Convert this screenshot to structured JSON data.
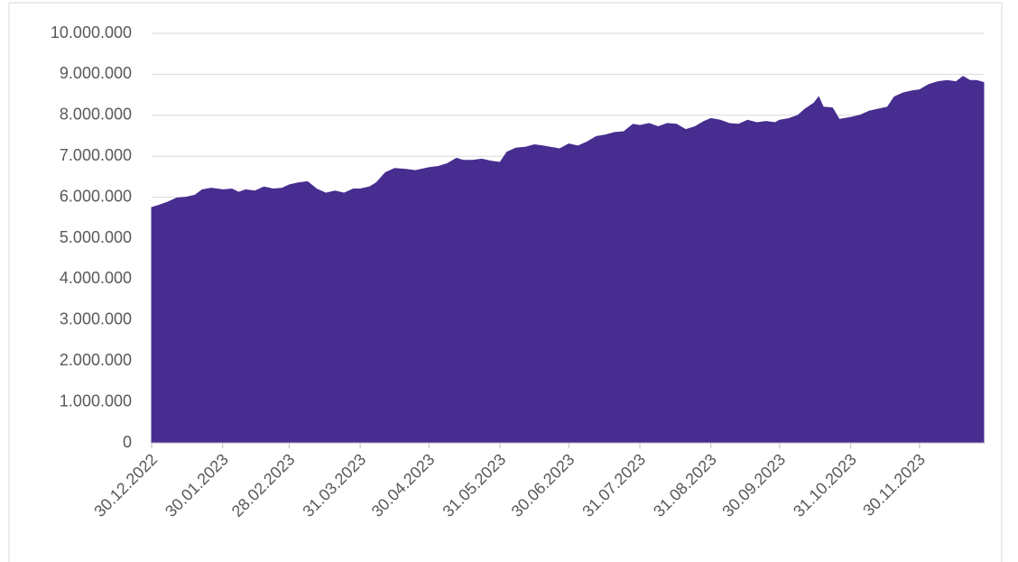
{
  "chart_data": {
    "type": "area",
    "color": "#472d8f",
    "grid": true,
    "x": [
      "2022-12-30",
      "2023-01-02",
      "2023-01-06",
      "2023-01-10",
      "2023-01-14",
      "2023-01-18",
      "2023-01-21",
      "2023-01-25",
      "2023-01-30",
      "2023-02-03",
      "2023-02-06",
      "2023-02-09",
      "2023-02-13",
      "2023-02-17",
      "2023-02-21",
      "2023-02-25",
      "2023-02-28",
      "2023-03-04",
      "2023-03-08",
      "2023-03-12",
      "2023-03-16",
      "2023-03-20",
      "2023-03-24",
      "2023-03-28",
      "2023-03-31",
      "2023-04-04",
      "2023-04-07",
      "2023-04-11",
      "2023-04-15",
      "2023-04-20",
      "2023-04-24",
      "2023-04-30",
      "2023-05-04",
      "2023-05-08",
      "2023-05-12",
      "2023-05-15",
      "2023-05-19",
      "2023-05-23",
      "2023-05-27",
      "2023-05-31",
      "2023-06-03",
      "2023-06-07",
      "2023-06-11",
      "2023-06-15",
      "2023-06-19",
      "2023-06-22",
      "2023-06-26",
      "2023-06-30",
      "2023-07-04",
      "2023-07-08",
      "2023-07-12",
      "2023-07-16",
      "2023-07-20",
      "2023-07-24",
      "2023-07-28",
      "2023-07-31",
      "2023-08-04",
      "2023-08-08",
      "2023-08-12",
      "2023-08-16",
      "2023-08-20",
      "2023-08-24",
      "2023-08-28",
      "2023-08-31",
      "2023-09-04",
      "2023-09-08",
      "2023-09-12",
      "2023-09-16",
      "2023-09-20",
      "2023-09-24",
      "2023-09-28",
      "2023-09-30",
      "2023-10-04",
      "2023-10-08",
      "2023-10-11",
      "2023-10-15",
      "2023-10-17",
      "2023-10-19",
      "2023-10-23",
      "2023-10-26",
      "2023-10-31",
      "2023-11-04",
      "2023-11-08",
      "2023-11-12",
      "2023-11-16",
      "2023-11-19",
      "2023-11-23",
      "2023-11-27",
      "2023-11-30",
      "2023-12-04",
      "2023-12-08",
      "2023-12-12",
      "2023-12-16",
      "2023-12-19",
      "2023-12-22",
      "2023-12-25",
      "2023-12-28"
    ],
    "values": [
      5750000,
      5800000,
      5880000,
      5980000,
      6000000,
      6050000,
      6180000,
      6220000,
      6180000,
      6200000,
      6120000,
      6180000,
      6150000,
      6250000,
      6200000,
      6220000,
      6300000,
      6350000,
      6380000,
      6200000,
      6100000,
      6150000,
      6100000,
      6200000,
      6200000,
      6250000,
      6350000,
      6600000,
      6700000,
      6680000,
      6650000,
      6720000,
      6750000,
      6820000,
      6950000,
      6900000,
      6900000,
      6930000,
      6880000,
      6850000,
      7100000,
      7200000,
      7220000,
      7280000,
      7250000,
      7220000,
      7180000,
      7300000,
      7250000,
      7350000,
      7480000,
      7520000,
      7580000,
      7600000,
      7780000,
      7750000,
      7800000,
      7720000,
      7800000,
      7780000,
      7650000,
      7720000,
      7850000,
      7920000,
      7880000,
      7800000,
      7780000,
      7880000,
      7820000,
      7850000,
      7820000,
      7880000,
      7920000,
      8000000,
      8150000,
      8300000,
      8450000,
      8200000,
      8180000,
      7900000,
      7950000,
      8000000,
      8100000,
      8150000,
      8200000,
      8450000,
      8550000,
      8600000,
      8620000,
      8750000,
      8820000,
      8850000,
      8820000,
      8950000,
      8850000,
      8850000,
      8800000
    ],
    "xlim": [
      "2022-12-30",
      "2023-12-28"
    ],
    "xticks": [
      {
        "value": "2022-12-30",
        "label": "30.12.2022"
      },
      {
        "value": "2023-01-30",
        "label": "30.01.2023"
      },
      {
        "value": "2023-02-28",
        "label": "28.02.2023"
      },
      {
        "value": "2023-03-31",
        "label": "31.03.2023"
      },
      {
        "value": "2023-04-30",
        "label": "30.04.2023"
      },
      {
        "value": "2023-05-31",
        "label": "31.05.2023"
      },
      {
        "value": "2023-06-30",
        "label": "30.06.2023"
      },
      {
        "value": "2023-07-31",
        "label": "31.07.2023"
      },
      {
        "value": "2023-08-31",
        "label": "31.08.2023"
      },
      {
        "value": "2023-09-30",
        "label": "30.09.2023"
      },
      {
        "value": "2023-10-31",
        "label": "31.10.2023"
      },
      {
        "value": "2023-11-30",
        "label": "30.11.2023"
      }
    ],
    "ylim": [
      0,
      10000000
    ],
    "yticks": [
      0,
      {
        "value": 1000000,
        "label": "1.000.000"
      },
      {
        "value": 2000000,
        "label": "2.000.000"
      },
      {
        "value": 3000000,
        "label": "3.000.000"
      },
      {
        "value": 4000000,
        "label": "4.000.000"
      },
      {
        "value": 5000000,
        "label": "5.000.000"
      },
      {
        "value": 6000000,
        "label": "6.000.000"
      },
      {
        "value": 7000000,
        "label": "7.000.000"
      },
      {
        "value": 8000000,
        "label": "8.000.000"
      },
      {
        "value": 9000000,
        "label": "9.000.000"
      },
      {
        "value": 10000000,
        "label": "10.000.000"
      }
    ]
  }
}
